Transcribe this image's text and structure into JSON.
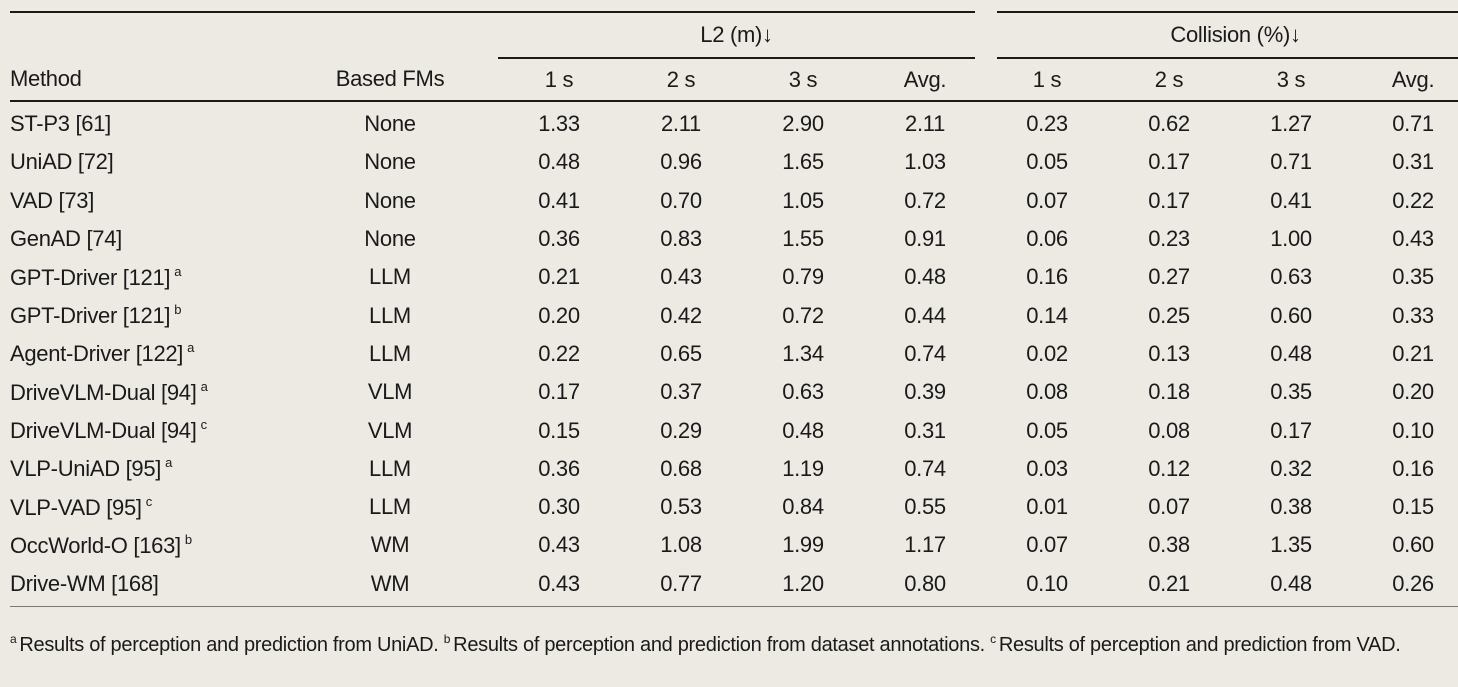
{
  "header": {
    "group_l2": "L2 (m)↓",
    "group_collision": "Collision (%)↓",
    "method": "Method",
    "based_fms": "Based FMs",
    "cols": [
      "1 s",
      "2 s",
      "3 s",
      "Avg.",
      "1 s",
      "2 s",
      "3 s",
      "Avg."
    ]
  },
  "rows": [
    {
      "method": "ST-P3 [61]",
      "sup": "",
      "fm": "None",
      "values": [
        "1.33",
        "2.11",
        "2.90",
        "2.11",
        "0.23",
        "0.62",
        "1.27",
        "0.71"
      ]
    },
    {
      "method": "UniAD [72]",
      "sup": "",
      "fm": "None",
      "values": [
        "0.48",
        "0.96",
        "1.65",
        "1.03",
        "0.05",
        "0.17",
        "0.71",
        "0.31"
      ]
    },
    {
      "method": "VAD [73]",
      "sup": "",
      "fm": "None",
      "values": [
        "0.41",
        "0.70",
        "1.05",
        "0.72",
        "0.07",
        "0.17",
        "0.41",
        "0.22"
      ]
    },
    {
      "method": "GenAD [74]",
      "sup": "",
      "fm": "None",
      "values": [
        "0.36",
        "0.83",
        "1.55",
        "0.91",
        "0.06",
        "0.23",
        "1.00",
        "0.43"
      ]
    },
    {
      "method": "GPT-Driver [121]",
      "sup": "a",
      "fm": "LLM",
      "values": [
        "0.21",
        "0.43",
        "0.79",
        "0.48",
        "0.16",
        "0.27",
        "0.63",
        "0.35"
      ]
    },
    {
      "method": "GPT-Driver [121]",
      "sup": "b",
      "fm": "LLM",
      "values": [
        "0.20",
        "0.42",
        "0.72",
        "0.44",
        "0.14",
        "0.25",
        "0.60",
        "0.33"
      ]
    },
    {
      "method": "Agent-Driver [122]",
      "sup": "a",
      "fm": "LLM",
      "values": [
        "0.22",
        "0.65",
        "1.34",
        "0.74",
        "0.02",
        "0.13",
        "0.48",
        "0.21"
      ]
    },
    {
      "method": "DriveVLM-Dual [94]",
      "sup": "a",
      "fm": "VLM",
      "values": [
        "0.17",
        "0.37",
        "0.63",
        "0.39",
        "0.08",
        "0.18",
        "0.35",
        "0.20"
      ]
    },
    {
      "method": "DriveVLM-Dual [94]",
      "sup": "c",
      "fm": "VLM",
      "values": [
        "0.15",
        "0.29",
        "0.48",
        "0.31",
        "0.05",
        "0.08",
        "0.17",
        "0.10"
      ]
    },
    {
      "method": "VLP-UniAD [95]",
      "sup": "a",
      "fm": "LLM",
      "values": [
        "0.36",
        "0.68",
        "1.19",
        "0.74",
        "0.03",
        "0.12",
        "0.32",
        "0.16"
      ]
    },
    {
      "method": "VLP-VAD [95]",
      "sup": "c",
      "fm": "LLM",
      "values": [
        "0.30",
        "0.53",
        "0.84",
        "0.55",
        "0.01",
        "0.07",
        "0.38",
        "0.15"
      ]
    },
    {
      "method": "OccWorld-O [163]",
      "sup": "b",
      "fm": "WM",
      "values": [
        "0.43",
        "1.08",
        "1.99",
        "1.17",
        "0.07",
        "0.38",
        "1.35",
        "0.60"
      ]
    },
    {
      "method": "Drive-WM [168]",
      "sup": "",
      "fm": "WM",
      "values": [
        "0.43",
        "0.77",
        "1.20",
        "0.80",
        "0.10",
        "0.21",
        "0.48",
        "0.26"
      ]
    }
  ],
  "footnotes": [
    {
      "mark": "a",
      "text": "Results of perception and prediction from UniAD."
    },
    {
      "mark": "b",
      "text": "Results of perception and prediction from dataset annotations."
    },
    {
      "mark": "c",
      "text": "Results of perception and prediction from VAD."
    }
  ]
}
